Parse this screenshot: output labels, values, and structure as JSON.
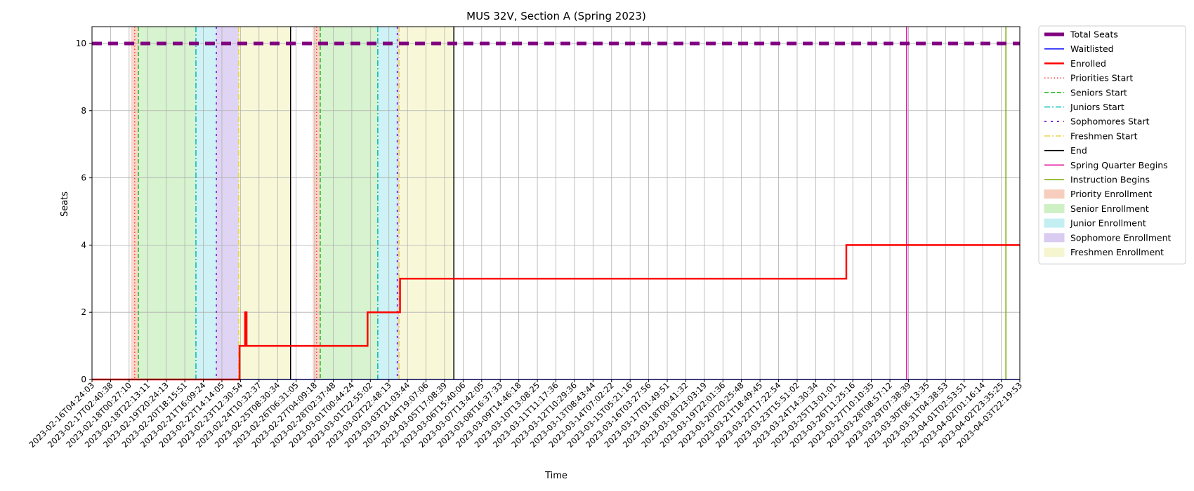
{
  "chart_data": {
    "type": "line",
    "title": "MUS 32V, Section A (Spring 2023)",
    "xlabel": "Time",
    "ylabel": "Seats",
    "ylim": [
      0,
      10.5
    ],
    "yticks": [
      0,
      2,
      4,
      6,
      8,
      10
    ],
    "grid": true,
    "legend_position": "outside-right",
    "x_tick_labels": [
      "2023-02-16T04:24:03",
      "2023-02-17T02:40:38",
      "2023-02-18T00:27:10",
      "2023-02-18T22:13:11",
      "2023-02-19T20:24:13",
      "2023-02-20T18:15:51",
      "2023-02-21T16:09:24",
      "2023-02-22T14:14:05",
      "2023-02-23T12:30:54",
      "2023-02-24T10:32:37",
      "2023-02-25T08:30:34",
      "2023-02-26T06:31:05",
      "2023-02-27T04:09:18",
      "2023-02-28T02:37:48",
      "2023-03-01T00:44:24",
      "2023-03-01T22:55:02",
      "2023-03-02T22:48:13",
      "2023-03-03T21:03:44",
      "2023-03-04T19:07:06",
      "2023-03-05T17:08:39",
      "2023-03-06T15:40:06",
      "2023-03-07T13:42:05",
      "2023-03-08T16:37:33",
      "2023-03-09T14:46:18",
      "2023-03-10T13:08:25",
      "2023-03-11T11:17:36",
      "2023-03-12T10:29:36",
      "2023-03-13T08:43:44",
      "2023-03-14T07:02:22",
      "2023-03-15T05:21:16",
      "2023-03-16T03:27:56",
      "2023-03-17T01:49:51",
      "2023-03-18T00:41:32",
      "2023-03-18T23:03:19",
      "2023-03-19T22:01:36",
      "2023-03-20T20:25:48",
      "2023-03-21T18:49:45",
      "2023-03-22T17:22:54",
      "2023-03-23T15:51:02",
      "2023-03-24T14:30:34",
      "2023-03-25T13:01:01",
      "2023-03-26T11:25:16",
      "2023-03-27T10:10:35",
      "2023-03-28T08:57:12",
      "2023-03-29T07:38:39",
      "2023-03-30T06:13:35",
      "2023-03-31T04:38:53",
      "2023-04-01T02:53:51",
      "2023-04-02T01:16:14",
      "2023-04-02T23:35:25",
      "2023-04-03T22:19:53"
    ],
    "series": [
      {
        "name": "Total Seats",
        "color": "#800080",
        "style": "dashed-thick",
        "points": [
          {
            "x": 0,
            "y": 10
          },
          {
            "x": 50,
            "y": 10
          }
        ]
      },
      {
        "name": "Waitlisted",
        "color": "#0000ff",
        "style": "solid",
        "points": [
          {
            "x": 0,
            "y": 0
          },
          {
            "x": 50,
            "y": 0
          }
        ]
      },
      {
        "name": "Enrolled",
        "color": "#ff0000",
        "style": "step",
        "points": [
          {
            "x": 0,
            "y": 0
          },
          {
            "x": 7.95,
            "y": 0
          },
          {
            "x": 7.95,
            "y": 1
          },
          {
            "x": 8.25,
            "y": 1
          },
          {
            "x": 8.25,
            "y": 2
          },
          {
            "x": 8.33,
            "y": 2
          },
          {
            "x": 8.33,
            "y": 1
          },
          {
            "x": 14.85,
            "y": 1
          },
          {
            "x": 14.85,
            "y": 2
          },
          {
            "x": 16.6,
            "y": 2
          },
          {
            "x": 16.6,
            "y": 3
          },
          {
            "x": 40.65,
            "y": 3
          },
          {
            "x": 40.65,
            "y": 4
          },
          {
            "x": 50,
            "y": 4
          }
        ]
      }
    ],
    "vertical_lines": [
      {
        "name": "Priorities Start",
        "color": "#ff4040",
        "style": "dotted",
        "x": [
          2.3,
          12.1
        ]
      },
      {
        "name": "Seniors Start",
        "color": "#22bb22",
        "style": "dashed",
        "x": [
          2.5,
          12.3
        ]
      },
      {
        "name": "Juniors Start",
        "color": "#00bbbb",
        "style": "dashdot",
        "x": [
          5.6,
          15.4
        ]
      },
      {
        "name": "Sophomores Start",
        "color": "#6a0dd9",
        "style": "densedot",
        "x": [
          6.7,
          16.45
        ]
      },
      {
        "name": "Freshmen Start",
        "color": "#e8d24a",
        "style": "dashdot",
        "x": [
          7.9,
          16.55
        ]
      },
      {
        "name": "End",
        "color": "#000000",
        "style": "solid",
        "x": [
          10.7,
          19.5
        ]
      },
      {
        "name": "Spring Quarter Begins",
        "color": "#e0109f",
        "style": "solid",
        "x": [
          43.9
        ]
      },
      {
        "name": "Instruction Begins",
        "color": "#77aa00",
        "style": "solid",
        "x": [
          49.25
        ]
      }
    ],
    "regions": [
      {
        "name": "Priority Enrollment",
        "color": "#f7c9b8",
        "spans": [
          [
            2.1,
            2.5
          ],
          [
            11.9,
            12.3
          ]
        ]
      },
      {
        "name": "Senior Enrollment",
        "color": "#c9efbf",
        "spans": [
          [
            2.5,
            5.6
          ],
          [
            12.3,
            15.4
          ]
        ]
      },
      {
        "name": "Junior Enrollment",
        "color": "#bdeef2",
        "spans": [
          [
            5.6,
            6.7
          ],
          [
            15.4,
            16.45
          ]
        ]
      },
      {
        "name": "Sophomore Enrollment",
        "color": "#d6c6f0",
        "spans": [
          [
            6.7,
            7.9
          ],
          [
            16.45,
            16.55
          ]
        ]
      },
      {
        "name": "Freshmen Enrollment",
        "color": "#f5f5cc",
        "spans": [
          [
            7.9,
            10.7
          ],
          [
            16.55,
            19.5
          ]
        ]
      }
    ],
    "legend": [
      "Total Seats",
      "Waitlisted",
      "Enrolled",
      "Priorities Start",
      "Seniors Start",
      "Juniors Start",
      "Sophomores Start",
      "Freshmen Start",
      "End",
      "Spring Quarter Begins",
      "Instruction Begins",
      "Priority Enrollment",
      "Senior Enrollment",
      "Junior Enrollment",
      "Sophomore Enrollment",
      "Freshmen Enrollment"
    ]
  }
}
